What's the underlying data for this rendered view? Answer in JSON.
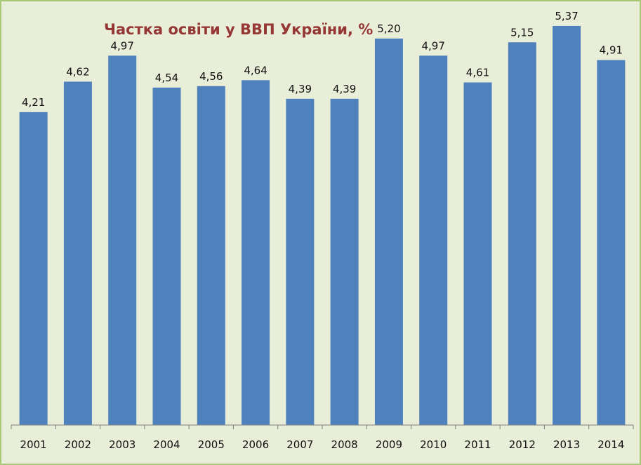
{
  "chart_data": {
    "type": "bar",
    "title": "Частка освіти у ВВП України, %",
    "xlabel": "",
    "ylabel": "",
    "categories": [
      "2001",
      "2002",
      "2003",
      "2004",
      "2005",
      "2006",
      "2007",
      "2008",
      "2009",
      "2010",
      "2011",
      "2012",
      "2013",
      "2014"
    ],
    "values": [
      4.21,
      4.62,
      4.97,
      4.54,
      4.56,
      4.64,
      4.39,
      4.39,
      5.2,
      4.97,
      4.61,
      5.15,
      5.37,
      4.91
    ],
    "value_labels": [
      "4,21",
      "4,62",
      "4,97",
      "4,54",
      "4,56",
      "4,64",
      "4,39",
      "4,39",
      "5,20",
      "4,97",
      "4,61",
      "5,15",
      "5,37",
      "4,91"
    ],
    "ylim": [
      0,
      5.7
    ],
    "grid": false,
    "legend": "none",
    "colors": {
      "bar": "#4f81bd",
      "title": "#953735",
      "background": "#e9eed9",
      "border": "#a8c878",
      "axis": "#7f7f7f"
    }
  }
}
